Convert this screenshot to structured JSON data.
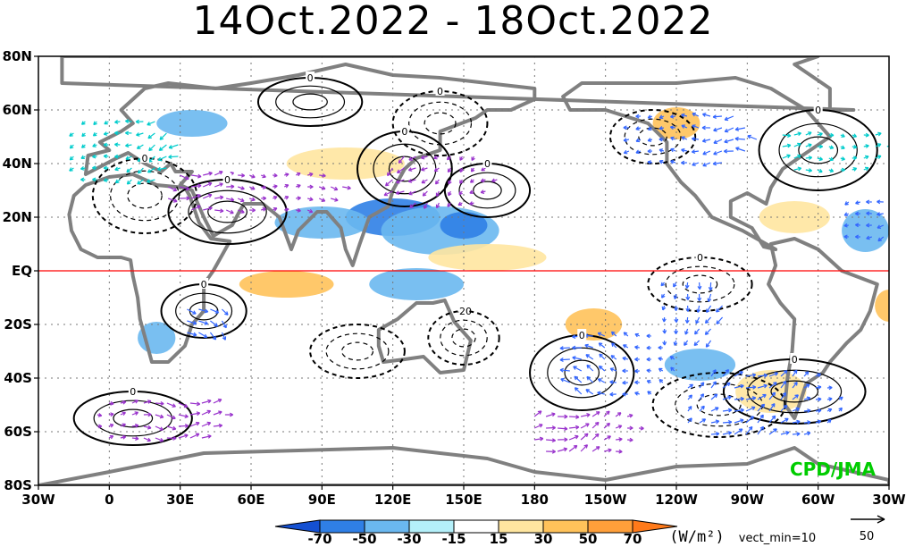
{
  "title": "14Oct.2022 - 18Oct.2022",
  "credit": "CPD/JMA",
  "colors": {
    "equator": "#ff0000",
    "coast": "#808080",
    "vector_magenta": "#9933cc",
    "vector_blue": "#3366ff",
    "vector_cyan": "#00cccc",
    "vector_yellow": "#cccc33",
    "credit": "#00cc00"
  },
  "map": {
    "projection": "equirectangular",
    "lon_range": [
      -30,
      330
    ],
    "lat_range": [
      -80,
      80
    ],
    "equator_line": "EQ",
    "grid": "dotted"
  },
  "axes": {
    "lat_ticks": [
      {
        "label": "80N",
        "value": 80
      },
      {
        "label": "60N",
        "value": 60
      },
      {
        "label": "40N",
        "value": 40
      },
      {
        "label": "20N",
        "value": 20
      },
      {
        "label": "EQ",
        "value": 0
      },
      {
        "label": "20S",
        "value": -20
      },
      {
        "label": "40S",
        "value": -40
      },
      {
        "label": "60S",
        "value": -60
      },
      {
        "label": "80S",
        "value": -80
      }
    ],
    "lon_ticks": [
      {
        "label": "30W",
        "value": -30
      },
      {
        "label": "0",
        "value": 0
      },
      {
        "label": "30E",
        "value": 30
      },
      {
        "label": "60E",
        "value": 60
      },
      {
        "label": "90E",
        "value": 90
      },
      {
        "label": "120E",
        "value": 120
      },
      {
        "label": "150E",
        "value": 150
      },
      {
        "label": "180",
        "value": 180
      },
      {
        "label": "150W",
        "value": 210
      },
      {
        "label": "120W",
        "value": 240
      },
      {
        "label": "90W",
        "value": 270
      },
      {
        "label": "60W",
        "value": 300
      },
      {
        "label": "30W",
        "value": 330
      }
    ]
  },
  "colorbar": {
    "units": "(W/m²)",
    "levels": [
      "-70",
      "-50",
      "-30",
      "-15",
      "15",
      "30",
      "50",
      "70"
    ],
    "colors": [
      "#1450d2",
      "#2f7fe6",
      "#6ab8f0",
      "#b4f0fa",
      "#ffffff",
      "#ffe6a0",
      "#ffc25a",
      "#ff9f3a",
      "#ff7a1a"
    ]
  },
  "vector_legend": {
    "label": "vect_min=10",
    "scale_value": "50"
  },
  "contour_labels": [
    "0",
    "0",
    "0",
    "0",
    "0",
    "0",
    "0",
    "0",
    "0",
    "0",
    "0",
    "0",
    "-20"
  ],
  "contours": [
    {
      "style": "solid",
      "lon": 50,
      "lat": 22,
      "rlon": 25,
      "rlat": 12
    },
    {
      "style": "solid",
      "lon": 125,
      "lat": 38,
      "rlon": 20,
      "rlat": 14
    },
    {
      "style": "solid",
      "lon": 160,
      "lat": 30,
      "rlon": 18,
      "rlat": 10
    },
    {
      "style": "solid",
      "lon": 85,
      "lat": 63,
      "rlon": 22,
      "rlat": 9
    },
    {
      "style": "solid",
      "lon": 300,
      "lat": 45,
      "rlon": 25,
      "rlat": 15
    },
    {
      "style": "solid",
      "lon": 200,
      "lat": -38,
      "rlon": 22,
      "rlat": 14
    },
    {
      "style": "solid",
      "lon": 290,
      "lat": -45,
      "rlon": 30,
      "rlat": 12
    },
    {
      "style": "solid",
      "lon": 40,
      "lat": -15,
      "rlon": 18,
      "rlat": 10
    },
    {
      "style": "solid",
      "lon": 10,
      "lat": -55,
      "rlon": 25,
      "rlat": 10
    },
    {
      "style": "dashed",
      "lon": 15,
      "lat": 28,
      "rlon": 22,
      "rlat": 14
    },
    {
      "style": "dashed",
      "lon": 140,
      "lat": 55,
      "rlon": 20,
      "rlat": 12
    },
    {
      "style": "dashed",
      "lon": 250,
      "lat": -5,
      "rlon": 22,
      "rlat": 10
    },
    {
      "style": "dashed",
      "lon": 150,
      "lat": -25,
      "rlon": 15,
      "rlat": 10
    },
    {
      "style": "dashed",
      "lon": 258,
      "lat": -50,
      "rlon": 28,
      "rlat": 12
    },
    {
      "style": "dashed",
      "lon": 230,
      "lat": 50,
      "rlon": 18,
      "rlat": 10
    },
    {
      "style": "dashed",
      "lon": 105,
      "lat": -30,
      "rlon": 20,
      "rlat": 10
    }
  ],
  "anomaly_patches": [
    {
      "cat": -2,
      "lon": 120,
      "lat": 20,
      "rlon": 20,
      "rlat": 7
    },
    {
      "cat": -1,
      "lon": 140,
      "lat": 15,
      "rlon": 25,
      "rlat": 9
    },
    {
      "cat": -2,
      "lon": 150,
      "lat": 17,
      "rlon": 10,
      "rlat": 5
    },
    {
      "cat": -1,
      "lon": 90,
      "lat": 18,
      "rlon": 20,
      "rlat": 6
    },
    {
      "cat": -1,
      "lon": 130,
      "lat": -5,
      "rlon": 20,
      "rlat": 6
    },
    {
      "cat": 2,
      "lon": 75,
      "lat": -5,
      "rlon": 20,
      "rlat": 5
    },
    {
      "cat": 1,
      "lon": 160,
      "lat": 5,
      "rlon": 25,
      "rlat": 5
    },
    {
      "cat": 2,
      "lon": 205,
      "lat": -20,
      "rlon": 12,
      "rlat": 6
    },
    {
      "cat": 2,
      "lon": 240,
      "lat": 55,
      "rlon": 10,
      "rlat": 6
    },
    {
      "cat": 1,
      "lon": 290,
      "lat": 20,
      "rlon": 15,
      "rlat": 6
    },
    {
      "cat": -1,
      "lon": 320,
      "lat": 15,
      "rlon": 10,
      "rlat": 8
    },
    {
      "cat": 2,
      "lon": 330,
      "lat": -13,
      "rlon": 6,
      "rlat": 6
    },
    {
      "cat": -1,
      "lon": 250,
      "lat": -35,
      "rlon": 15,
      "rlat": 6
    },
    {
      "cat": 1,
      "lon": 280,
      "lat": -45,
      "rlon": 15,
      "rlat": 8
    },
    {
      "cat": -1,
      "lon": 20,
      "lat": -25,
      "rlon": 8,
      "rlat": 6
    },
    {
      "cat": 1,
      "lon": 100,
      "lat": 40,
      "rlon": 25,
      "rlat": 6
    },
    {
      "cat": -1,
      "lon": 35,
      "lat": 55,
      "rlon": 15,
      "rlat": 5
    }
  ],
  "vector_regions": [
    {
      "lon": 5,
      "lat": 45,
      "rlon": 25,
      "rlat": 15,
      "dir": 200,
      "color": "vector_cyan"
    },
    {
      "lon": 245,
      "lat": 50,
      "rlon": 30,
      "rlat": 12,
      "dir": 180,
      "color": "vector_blue"
    },
    {
      "lon": 305,
      "lat": 45,
      "rlon": 25,
      "rlat": 10,
      "dir": 0,
      "color": "vector_cyan"
    },
    {
      "lon": 215,
      "lat": -35,
      "rlon": 25,
      "rlat": 15,
      "dir": 160,
      "color": "vector_blue"
    },
    {
      "lon": 275,
      "lat": -50,
      "rlon": 35,
      "rlat": 15,
      "dir": 30,
      "color": "vector_blue"
    },
    {
      "lon": 140,
      "lat": 35,
      "rlon": 25,
      "rlat": 12,
      "dir": 220,
      "color": "vector_magenta"
    },
    {
      "lon": 60,
      "lat": 30,
      "rlon": 40,
      "rlat": 10,
      "dir": 0,
      "color": "vector_magenta"
    },
    {
      "lon": 245,
      "lat": -15,
      "rlon": 15,
      "rlat": 15,
      "dir": 250,
      "color": "vector_blue"
    },
    {
      "lon": 40,
      "lat": -18,
      "rlon": 12,
      "rlat": 8,
      "dir": 320,
      "color": "vector_blue"
    },
    {
      "lon": 320,
      "lat": 20,
      "rlon": 12,
      "rlat": 10,
      "dir": 200,
      "color": "vector_blue"
    },
    {
      "lon": 20,
      "lat": -55,
      "rlon": 30,
      "rlat": 10,
      "dir": 0,
      "color": "vector_magenta"
    },
    {
      "lon": 200,
      "lat": -60,
      "rlon": 25,
      "rlat": 10,
      "dir": 20,
      "color": "vector_magenta"
    }
  ],
  "continents": [
    {
      "name": "north-america",
      "pts": [
        [
          -168,
          65
        ],
        [
          -160,
          70
        ],
        [
          -140,
          70
        ],
        [
          -120,
          70
        ],
        [
          -95,
          72
        ],
        [
          -80,
          68
        ],
        [
          -65,
          60
        ],
        [
          -55,
          50
        ],
        [
          -65,
          44
        ],
        [
          -75,
          38
        ],
        [
          -80,
          31
        ],
        [
          -82,
          25
        ],
        [
          -90,
          29
        ],
        [
          -97,
          26
        ],
        [
          -97,
          20
        ],
        [
          -88,
          16
        ],
        [
          -83,
          9
        ],
        [
          -78,
          8
        ],
        [
          -92,
          15
        ],
        [
          -105,
          20
        ],
        [
          -112,
          28
        ],
        [
          -118,
          33
        ],
        [
          -124,
          40
        ],
        [
          -124,
          48
        ],
        [
          -132,
          55
        ],
        [
          -150,
          60
        ],
        [
          -165,
          60
        ]
      ]
    },
    {
      "name": "south-america",
      "pts": [
        [
          -80,
          10
        ],
        [
          -70,
          12
        ],
        [
          -60,
          8
        ],
        [
          -50,
          0
        ],
        [
          -35,
          -5
        ],
        [
          -38,
          -15
        ],
        [
          -42,
          -22
        ],
        [
          -48,
          -27
        ],
        [
          -55,
          -34
        ],
        [
          -58,
          -38
        ],
        [
          -65,
          -42
        ],
        [
          -68,
          -50
        ],
        [
          -70,
          -55
        ],
        [
          -74,
          -50
        ],
        [
          -73,
          -40
        ],
        [
          -71,
          -30
        ],
        [
          -70,
          -18
        ],
        [
          -76,
          -12
        ],
        [
          -81,
          -5
        ],
        [
          -78,
          2
        ]
      ]
    },
    {
      "name": "africa",
      "pts": [
        [
          -17,
          21
        ],
        [
          -16,
          15
        ],
        [
          -12,
          8
        ],
        [
          -5,
          5
        ],
        [
          5,
          5
        ],
        [
          9,
          4
        ],
        [
          10,
          -2
        ],
        [
          12,
          -10
        ],
        [
          13,
          -18
        ],
        [
          18,
          -34
        ],
        [
          25,
          -34
        ],
        [
          32,
          -28
        ],
        [
          35,
          -20
        ],
        [
          40,
          -15
        ],
        [
          40,
          -5
        ],
        [
          44,
          0
        ],
        [
          51,
          11
        ],
        [
          43,
          12
        ],
        [
          38,
          18
        ],
        [
          34,
          28
        ],
        [
          32,
          31
        ],
        [
          20,
          32
        ],
        [
          10,
          36
        ],
        [
          0,
          35
        ],
        [
          -10,
          32
        ],
        [
          -15,
          28
        ]
      ]
    },
    {
      "name": "eurasia",
      "pts": [
        [
          -10,
          36
        ],
        [
          -9,
          43
        ],
        [
          0,
          45
        ],
        [
          -4,
          48
        ],
        [
          5,
          52
        ],
        [
          10,
          55
        ],
        [
          5,
          60
        ],
        [
          15,
          68
        ],
        [
          25,
          70
        ],
        [
          45,
          68
        ],
        [
          60,
          70
        ],
        [
          80,
          73
        ],
        [
          100,
          77
        ],
        [
          120,
          73
        ],
        [
          140,
          72
        ],
        [
          160,
          70
        ],
        [
          180,
          68
        ],
        [
          180,
          64
        ],
        [
          170,
          60
        ],
        [
          160,
          60
        ],
        [
          155,
          57
        ],
        [
          140,
          52
        ],
        [
          140,
          45
        ],
        [
          130,
          42
        ],
        [
          125,
          38
        ],
        [
          120,
          30
        ],
        [
          118,
          24
        ],
        [
          110,
          20
        ],
        [
          106,
          10
        ],
        [
          103,
          2
        ],
        [
          100,
          8
        ],
        [
          98,
          16
        ],
        [
          92,
          22
        ],
        [
          88,
          22
        ],
        [
          80,
          15
        ],
        [
          77,
          8
        ],
        [
          72,
          20
        ],
        [
          65,
          25
        ],
        [
          57,
          25
        ],
        [
          55,
          22
        ],
        [
          52,
          17
        ],
        [
          44,
          13
        ],
        [
          40,
          20
        ],
        [
          35,
          30
        ],
        [
          30,
          32
        ],
        [
          35,
          37
        ],
        [
          28,
          37
        ],
        [
          26,
          40
        ],
        [
          22,
          37
        ],
        [
          15,
          40
        ],
        [
          8,
          44
        ],
        [
          3,
          42
        ]
      ]
    },
    {
      "name": "australia",
      "pts": [
        [
          114,
          -22
        ],
        [
          122,
          -18
        ],
        [
          130,
          -12
        ],
        [
          137,
          -12
        ],
        [
          142,
          -11
        ],
        [
          146,
          -19
        ],
        [
          153,
          -26
        ],
        [
          150,
          -37
        ],
        [
          140,
          -38
        ],
        [
          133,
          -32
        ],
        [
          125,
          -33
        ],
        [
          116,
          -34
        ],
        [
          114,
          -28
        ]
      ]
    },
    {
      "name": "greenland",
      "pts": [
        [
          -55,
          60
        ],
        [
          -45,
          60
        ],
        [
          -20,
          70
        ],
        [
          -20,
          80
        ],
        [
          -60,
          80
        ],
        [
          -70,
          77
        ],
        [
          -55,
          68
        ]
      ]
    },
    {
      "name": "antarctica",
      "pts": [
        [
          -30,
          -80
        ],
        [
          0,
          -75
        ],
        [
          40,
          -68
        ],
        [
          80,
          -67
        ],
        [
          120,
          -66
        ],
        [
          160,
          -70
        ],
        [
          180,
          -75
        ],
        [
          210,
          -78
        ],
        [
          240,
          -73
        ],
        [
          270,
          -72
        ],
        [
          290,
          -66
        ],
        [
          300,
          -72
        ],
        [
          330,
          -78
        ],
        [
          330,
          -80
        ],
        [
          -30,
          -80
        ]
      ]
    }
  ]
}
